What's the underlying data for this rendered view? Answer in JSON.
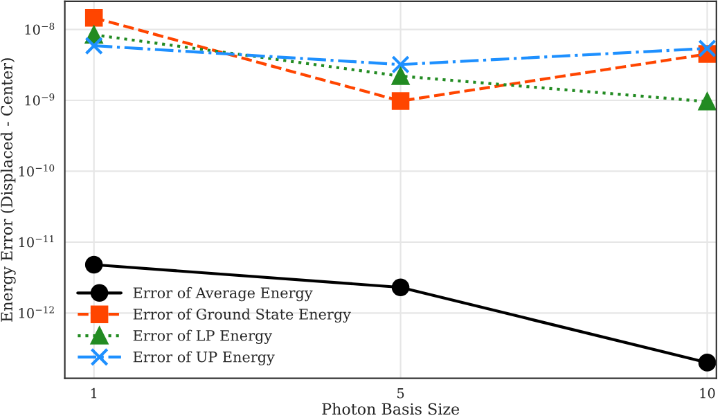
{
  "chart_data": {
    "type": "line",
    "xlabel": "Photon Basis Size",
    "ylabel": "Energy Error (Displaced - Center)",
    "categories": [
      "1",
      "5",
      "10"
    ],
    "log": "y",
    "ylim": [
      1.2e-13,
      2.5e-08
    ],
    "yticks": [
      {
        "value": 1e-12,
        "label": "10$^{−12}$"
      },
      {
        "value": 1e-11,
        "label": "10$^{−11}$"
      },
      {
        "value": 1e-10,
        "label": "10$^{−10}$"
      },
      {
        "value": 1e-09,
        "label": "10$^{−9}$"
      },
      {
        "value": 1e-08,
        "label": "10$^{−8}$"
      }
    ],
    "grid": true,
    "legend": "bottom left",
    "series": [
      {
        "name": "Error of Average Energy",
        "color": "#000000",
        "marker": "circle",
        "line_style": "solid",
        "values": [
          4.8e-12,
          2.3e-12,
          2e-13
        ]
      },
      {
        "name": "Error of Ground State Energy",
        "color": "#ff4500",
        "marker": "square",
        "line_style": "dashed",
        "values": [
          1.46e-08,
          9.8e-10,
          4.5e-09
        ]
      },
      {
        "name": "Error of LP Energy",
        "color": "#228b22",
        "marker": "triangle",
        "line_style": "dotted",
        "values": [
          8.4e-09,
          2.2e-09,
          9.6e-10
        ]
      },
      {
        "name": "Error of UP Energy",
        "color": "#1e90ff",
        "marker": "cross",
        "line_style": "dashdot",
        "values": [
          5.9e-09,
          3.2e-09,
          5.4e-09
        ]
      }
    ]
  }
}
